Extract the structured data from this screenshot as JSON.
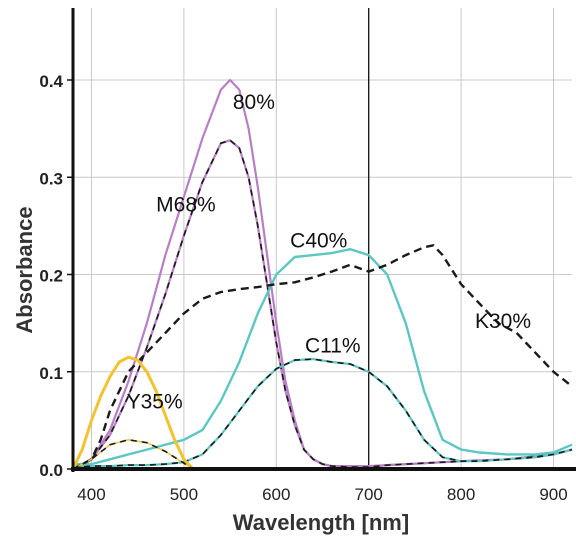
{
  "chart_data": {
    "type": "line",
    "title": "",
    "xlabel": "Wavelength [nm]",
    "ylabel": "Absorbance",
    "xlim": [
      380,
      920
    ],
    "ylim": [
      0,
      0.4
    ],
    "x_ticks": [
      400,
      500,
      600,
      700,
      800,
      900
    ],
    "y_ticks": [
      0.0,
      0.1,
      0.2,
      0.3,
      0.4
    ],
    "y_tick_labels": [
      "0.0",
      "0.1",
      "0.2",
      "0.3",
      "0.4"
    ],
    "grid": true,
    "vertical_marker_x": 700,
    "colors": {
      "magenta": "#b77fc4",
      "cyan": "#5cc7c2",
      "yellow": "#f2c230",
      "black": "#1a1a1a"
    },
    "series": [
      {
        "name": "80%",
        "color": "#b77fc4",
        "dash": false,
        "width": 2.2,
        "label_pos": [
          553,
          0.37
        ],
        "x": [
          380,
          400,
          420,
          440,
          460,
          480,
          500,
          520,
          540,
          550,
          560,
          570,
          580,
          590,
          600,
          610,
          620,
          630,
          640,
          650,
          660,
          680,
          700,
          720,
          760,
          800,
          850,
          900,
          920
        ],
        "y": [
          0.0,
          0.01,
          0.04,
          0.09,
          0.15,
          0.22,
          0.28,
          0.34,
          0.39,
          0.4,
          0.39,
          0.35,
          0.29,
          0.22,
          0.15,
          0.09,
          0.05,
          0.02,
          0.01,
          0.005,
          0.003,
          0.003,
          0.003,
          0.004,
          0.006,
          0.008,
          0.01,
          0.015,
          0.02
        ]
      },
      {
        "name": "M68%",
        "color": "#b77fc4",
        "dash": false,
        "width": 2.2,
        "label_pos": [
          470,
          0.265
        ],
        "x": [
          380,
          400,
          420,
          440,
          460,
          480,
          500,
          520,
          540,
          550,
          560,
          570,
          580,
          590,
          600,
          610,
          620,
          630,
          640,
          650,
          660,
          680,
          700,
          720,
          760,
          800,
          850,
          900,
          920
        ],
        "y": [
          0.0,
          0.01,
          0.035,
          0.075,
          0.125,
          0.18,
          0.24,
          0.295,
          0.335,
          0.338,
          0.33,
          0.3,
          0.25,
          0.19,
          0.13,
          0.08,
          0.045,
          0.02,
          0.01,
          0.005,
          0.003,
          0.002,
          0.002,
          0.004,
          0.006,
          0.008,
          0.01,
          0.015,
          0.02
        ],
        "overlay_dash": true
      },
      {
        "name": "C40%",
        "color": "#5cc7c2",
        "dash": false,
        "width": 2.4,
        "label_pos": [
          615,
          0.228
        ],
        "x": [
          380,
          400,
          420,
          440,
          460,
          480,
          500,
          520,
          540,
          560,
          580,
          600,
          620,
          640,
          660,
          680,
          700,
          720,
          740,
          760,
          780,
          800,
          820,
          850,
          880,
          900,
          920
        ],
        "y": [
          0.005,
          0.005,
          0.01,
          0.015,
          0.02,
          0.025,
          0.03,
          0.04,
          0.07,
          0.11,
          0.16,
          0.2,
          0.218,
          0.22,
          0.222,
          0.226,
          0.22,
          0.2,
          0.15,
          0.08,
          0.03,
          0.02,
          0.017,
          0.015,
          0.015,
          0.017,
          0.025
        ]
      },
      {
        "name": "C11%",
        "color": "#5cc7c2",
        "dash": false,
        "width": 2.2,
        "label_pos": [
          631,
          0.12
        ],
        "x": [
          380,
          400,
          420,
          440,
          460,
          480,
          500,
          520,
          540,
          560,
          580,
          600,
          620,
          640,
          660,
          680,
          700,
          720,
          740,
          760,
          780,
          800,
          820,
          850,
          880,
          900,
          920
        ],
        "y": [
          0.002,
          0.003,
          0.003,
          0.004,
          0.004,
          0.005,
          0.007,
          0.015,
          0.035,
          0.06,
          0.085,
          0.103,
          0.112,
          0.113,
          0.11,
          0.108,
          0.1,
          0.085,
          0.06,
          0.03,
          0.012,
          0.008,
          0.008,
          0.01,
          0.012,
          0.015,
          0.02
        ],
        "overlay_dash": true
      },
      {
        "name": "K30%",
        "color": "#1a1a1a",
        "dash": true,
        "width": 2.4,
        "label_pos": [
          815,
          0.145
        ],
        "x": [
          380,
          400,
          410,
          420,
          430,
          440,
          450,
          460,
          470,
          480,
          500,
          520,
          540,
          560,
          580,
          600,
          620,
          640,
          660,
          680,
          700,
          720,
          740,
          760,
          770,
          780,
          800,
          820,
          840,
          860,
          880,
          900,
          920
        ],
        "y": [
          0.0,
          0.01,
          0.03,
          0.06,
          0.08,
          0.1,
          0.11,
          0.12,
          0.13,
          0.14,
          0.16,
          0.175,
          0.182,
          0.185,
          0.187,
          0.19,
          0.192,
          0.197,
          0.203,
          0.21,
          0.203,
          0.21,
          0.22,
          0.228,
          0.23,
          0.22,
          0.19,
          0.17,
          0.15,
          0.14,
          0.12,
          0.1,
          0.085
        ]
      },
      {
        "name": "Y35%",
        "color": "#f2c230",
        "dash": false,
        "width": 3,
        "label_pos": [
          438,
          0.062
        ],
        "x": [
          380,
          390,
          400,
          410,
          420,
          430,
          440,
          450,
          460,
          470,
          480,
          490,
          500,
          510
        ],
        "y": [
          0.0,
          0.02,
          0.05,
          0.075,
          0.095,
          0.11,
          0.115,
          0.112,
          0.1,
          0.08,
          0.055,
          0.03,
          0.01,
          0.0
        ]
      },
      {
        "name": "",
        "color": "#f2c230",
        "dash": false,
        "width": 1.5,
        "label_pos": null,
        "x": [
          380,
          400,
          420,
          440,
          460,
          480,
          500,
          510
        ],
        "y": [
          0.0,
          0.01,
          0.025,
          0.03,
          0.027,
          0.018,
          0.006,
          0.0
        ],
        "overlay_dash": true
      }
    ]
  }
}
